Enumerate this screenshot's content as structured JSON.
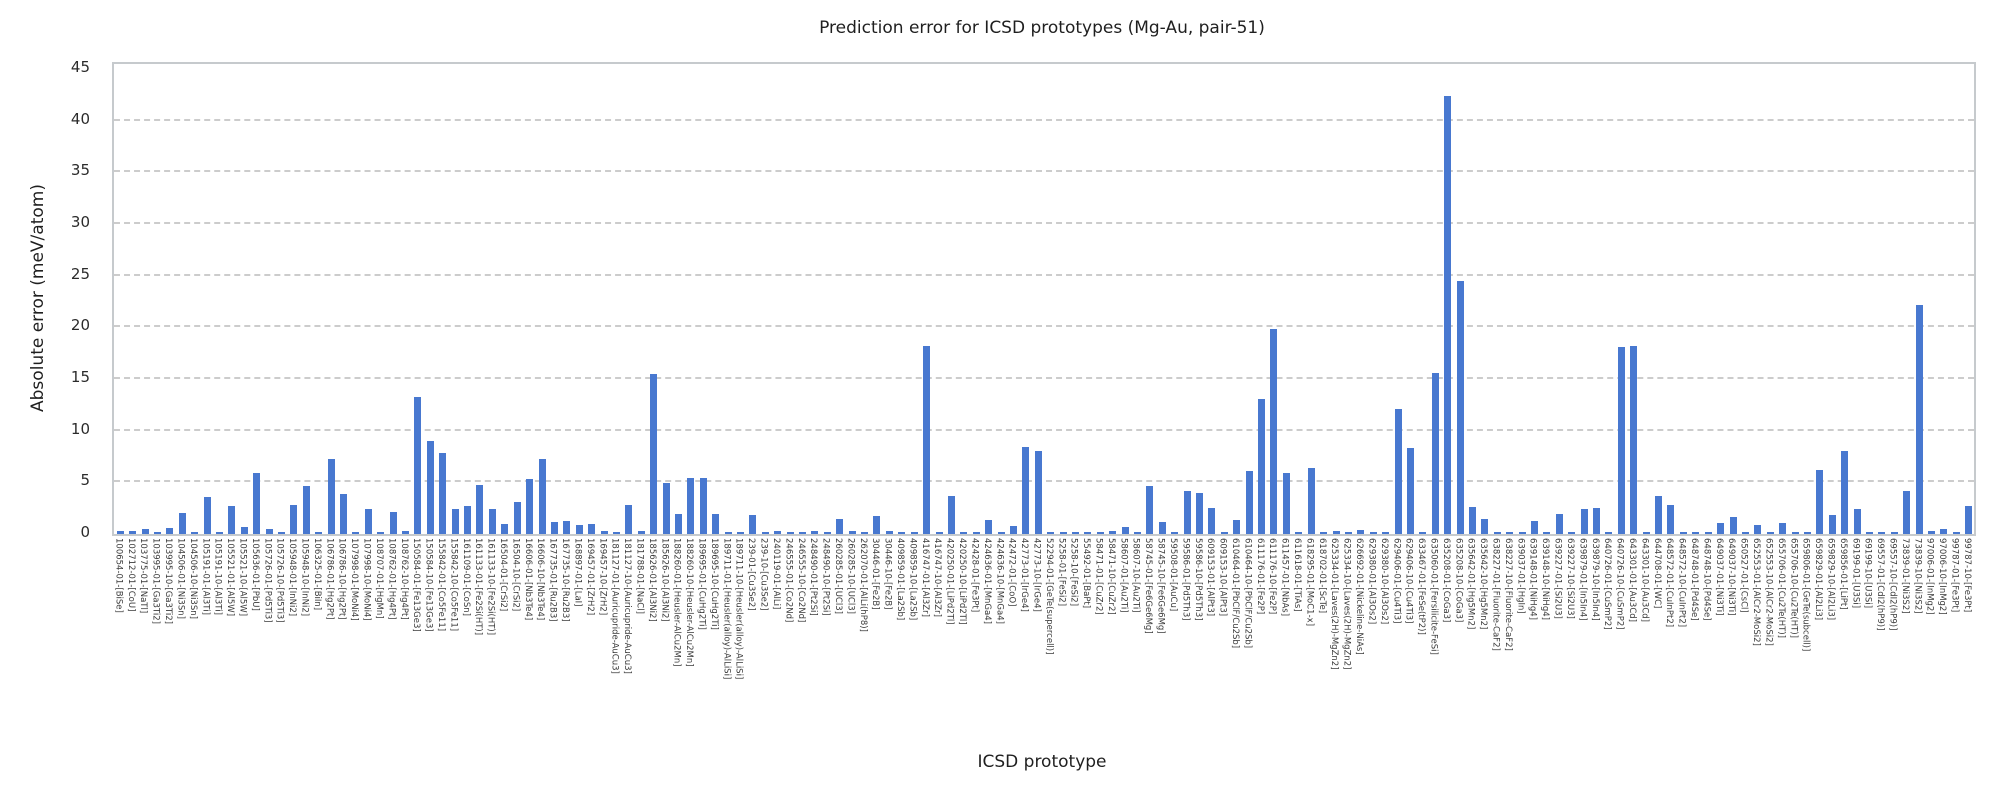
{
  "chart_data": {
    "type": "bar",
    "title": "Prediction error for ICSD prototypes (Mg-Au, pair-51)",
    "xlabel": "ICSD prototype",
    "ylabel": "Absolute error (meV/atom)",
    "ylim": [
      0,
      45
    ],
    "ytick_step": 5,
    "yticks": [
      0,
      5,
      10,
      15,
      20,
      25,
      30,
      35,
      40,
      45
    ],
    "grid": "horizontal-dashed",
    "legend": "none",
    "bar_color": "#4878D0",
    "categories": [
      "100654-01-[BiSe]",
      "102712-01-[CoU]",
      "103775-01-[NaTl]",
      "103995-01-[Ga3Ti2]",
      "103995-10-[Ga3Ti2]",
      "104506-01-[Ni3Sn]",
      "104506-10-[Ni3Sn]",
      "105191-01-[Al3Ti]",
      "105191-10-[Al3Ti]",
      "105521-01-[Al5W]",
      "105521-10-[Al5W]",
      "105636-01-[PbU]",
      "105726-01-[Pd5Ti3]",
      "105726-10-[Pd5Ti3]",
      "105948-01-[InNi2]",
      "105948-10-[InNi2]",
      "106325-01-[BiIn]",
      "106786-01-[Hg2Pt]",
      "106786-10-[Hg2Pt]",
      "107998-01-[MoNi4]",
      "107998-10-[MoNi4]",
      "108707-01-[HgMn]",
      "108762-01-[Hg4Pt]",
      "108762-10-[Hg4Pt]",
      "150584-01-[Fe13Ge3]",
      "150584-10-[Fe13Ge3]",
      "155842-01-[Co5Fe11]",
      "155842-10-[Co5Fe11]",
      "161109-01-[CoSn]",
      "161133-01-[Fe2Si(HT)]",
      "161133-10-[Fe2Si(HT)]",
      "16504-01-[CrSi2]",
      "16504-10-[CrSi2]",
      "16606-01-[Nb3Te4]",
      "16606-10-[Nb3Te4]",
      "167735-01-[Ru2B3]",
      "167735-10-[Ru2B3]",
      "168897-01-[LaI]",
      "169457-01-[ZrH2]",
      "169457-10-[ZrH2]",
      "181127-01-[Auricupride-AuCu3]",
      "181127-10-[Auricupride-AuCu3]",
      "181788-01-[NaCl]",
      "185626-01-[Al3Ni2]",
      "185626-10-[Al3Ni2]",
      "188260-01-[Heusler-AlCu2Mn]",
      "188260-10-[Heusler-AlCu2Mn]",
      "189695-01-[CuHg2Ti]",
      "189695-10-[CuHg2Ti]",
      "189711-01-[Heusler(alloy)-AlLiSi]",
      "189711-10-[Heusler(alloy)-AlLiSi]",
      "239-01-[Cu3Se2]",
      "239-10-[Cu3Se2]",
      "240119-01-[AlLi]",
      "246555-01-[Co2Nd]",
      "246555-10-[Co2Nd]",
      "248490-01-[Pt2Si]",
      "248490-10-[Pt2Si]",
      "260285-01-[UCl3]",
      "260285-10-[UCl3]",
      "262070-01-[AlLi(hP8)]",
      "30446-01-[Fe2B]",
      "30446-10-[Fe2B]",
      "409859-01-[La2Sb]",
      "409859-10-[La2Sb]",
      "416747-01-[Al3Zr]",
      "416747-10-[Al3Zr]",
      "420250-01-[LiPd2Tl]",
      "420250-10-[LiPd2Tl]",
      "42428-01-[Fe3Pt]",
      "424636-01-[MnGa4]",
      "424636-10-[MnGa4]",
      "42472-01-[CoO]",
      "42773-01-[IrGe4]",
      "42773-10-[IrGe4]",
      "52294-01-[GeTe(supercell)]",
      "5258-01-[FeSi2]",
      "5258-10-[FeSi2]",
      "55492-01-[BaPt]",
      "58471-01-[CuZr2]",
      "58471-10-[CuZr2]",
      "58607-01-[Au2Ti]",
      "58607-10-[Au2Ti]",
      "58745-01-[Fe6Ge6Mg]",
      "58745-10-[Fe6Ge6Mg]",
      "59508-01-[AuCu]",
      "59586-01-[Pd5Th3]",
      "59586-10-[Pd5Th3]",
      "609153-01-[AlPt3]",
      "609153-10-[AlPt3]",
      "610464-01-[PbClF/Cu2Sb]",
      "610464-10-[PbClF/Cu2Sb]",
      "611176-01-[Fe2P]",
      "611176-10-[Fe2P]",
      "611457-01-[NbAs]",
      "611618-01-[TiAs]",
      "618295-01-[MoC1-x]",
      "618702-01-[ScTe]",
      "625334-01-[Laves(2H)-MgZn2]",
      "625334-10-[Laves(2H)-MgZn2]",
      "626692-01-[Nickeline-NiAs]",
      "629380-01-[Al3Os2]",
      "629380-10-[Al3Os2]",
      "629406-01-[Cu4Ti3]",
      "629406-10-[Cu4Ti3]",
      "633467-01-[FeSe(tP2)]",
      "635060-01-[Fersilicite-FeSi]",
      "635208-01-[CoGa3]",
      "635208-10-[CoGa3]",
      "635642-01-[Hg5Mn2]",
      "635642-10-[Hg5Mn2]",
      "638227-01-[Fluorite-CaF2]",
      "638227-10-[Fluorite-CaF2]",
      "639037-01-[HgIn]",
      "639148-01-[NiHg4]",
      "639148-10-[NiHg4]",
      "639227-01-[Si2U3]",
      "639227-10-[Si2U3]",
      "639879-01-[In5In4]",
      "639879-10-[In5In4]",
      "640726-01-[CuSmP2]",
      "640726-10-[CuSmP2]",
      "643301-01-[Au3Cd]",
      "643301-10-[Au3Cd]",
      "644708-01-[WC]",
      "648572-01-[CuInPt2]",
      "648572-10-[CuInPt2]",
      "648748-01-[Pd4Se]",
      "648748-10-[Pd4Se]",
      "649037-01-[Ni3Ti]",
      "649037-10-[Ni3Ti]",
      "650527-01-[CsCl]",
      "652553-01-[AlCr2-MoSi2]",
      "652553-10-[AlCr2-MoSi2]",
      "655706-01-[Cu2Te(HT)]",
      "655706-10-[Cu2Te(HT)]",
      "659806-01-[GeTe(subcell)]",
      "659829-01-[Al2Li3]",
      "659829-10-[Al2Li3]",
      "659856-01-[LiPt]",
      "69199-01-[U3Si]",
      "69199-10-[U3Si]",
      "69557-01-[CdI2(hP9)]",
      "69557-10-[CdI2(hP9)]",
      "73839-01-[Ni3S2]",
      "73839-10-[Ni3S2]",
      "97006-01-[InMg2]",
      "97006-10-[InMg2]",
      "99787-01-[Fe3Pt]",
      "99787-10-[Fe3Pt]"
    ],
    "values": [
      0.3,
      0.3,
      0.5,
      0.2,
      0.6,
      2.0,
      0.2,
      3.6,
      0.2,
      2.7,
      0.7,
      5.9,
      0.5,
      0.2,
      2.8,
      4.6,
      0.2,
      7.3,
      3.9,
      0.2,
      2.4,
      0.2,
      2.1,
      0.3,
      13.3,
      9.0,
      7.8,
      2.4,
      2.7,
      4.7,
      2.4,
      1.0,
      3.1,
      5.3,
      7.3,
      1.2,
      1.3,
      0.9,
      1.0,
      0.3,
      0.2,
      2.8,
      0.3,
      15.5,
      4.9,
      1.9,
      5.4,
      5.4,
      1.9,
      0.2,
      0.2,
      1.8,
      0.2,
      0.3,
      0.2,
      0.2,
      0.3,
      0.2,
      1.5,
      0.3,
      0.2,
      1.7,
      0.3,
      0.2,
      0.2,
      18.2,
      0.2,
      3.7,
      0.2,
      0.2,
      1.4,
      0.2,
      0.8,
      8.4,
      8.0,
      0.2,
      0.2,
      0.2,
      0.2,
      0.2,
      0.3,
      0.7,
      0.2,
      4.6,
      1.2,
      0.2,
      4.2,
      4.0,
      2.5,
      0.2,
      1.4,
      6.1,
      13.1,
      19.8,
      5.9,
      0.2,
      6.4,
      0.2,
      0.3,
      0.2,
      0.4,
      0.2,
      0.2,
      12.1,
      8.3,
      0.2,
      15.6,
      42.4,
      24.5,
      2.6,
      1.5,
      0.2,
      0.2,
      0.2,
      1.3,
      0.2,
      1.9,
      0.2,
      2.4,
      2.5,
      0.2,
      18.1,
      18.2,
      0.2,
      3.7,
      2.8,
      0.2,
      0.2,
      0.2,
      1.1,
      1.6,
      0.2,
      0.9,
      0.2,
      1.1,
      0.2,
      0.2,
      6.2,
      1.8,
      8.0,
      2.4,
      0.2,
      0.2,
      0.2,
      4.2,
      22.2,
      0.3,
      0.5,
      0.2,
      2.7
    ]
  }
}
